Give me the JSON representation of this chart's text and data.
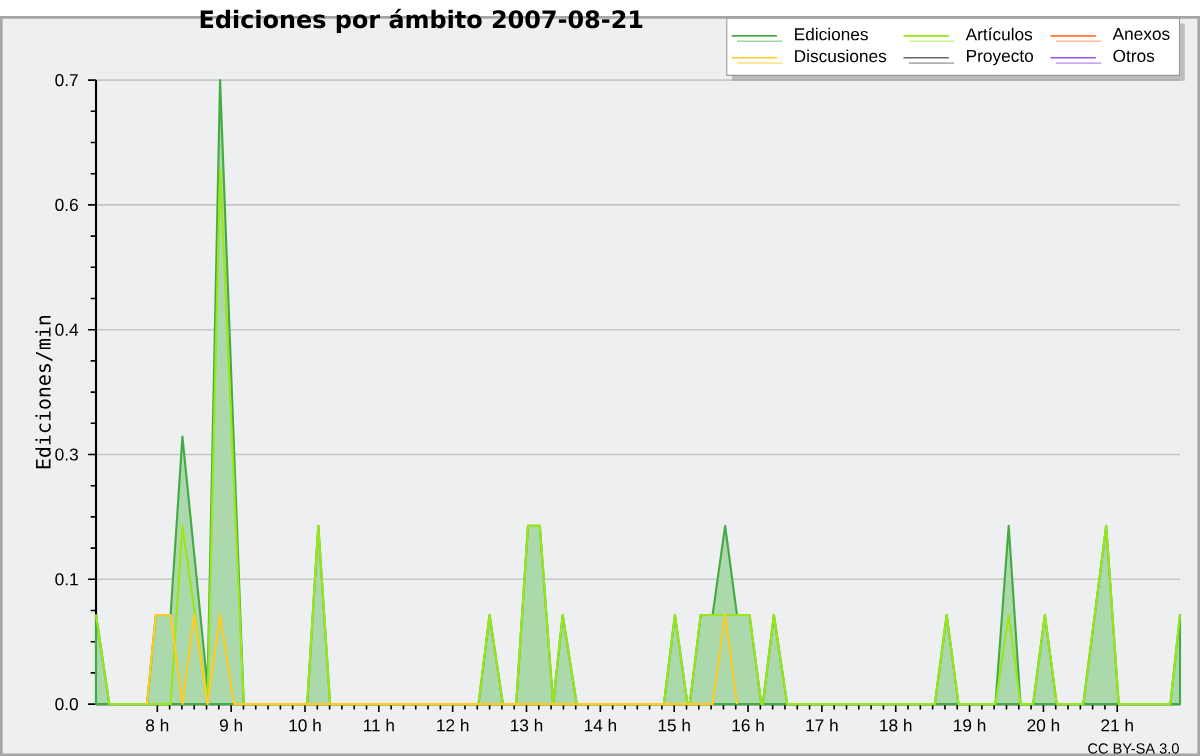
{
  "chart_data": {
    "type": "line",
    "title": "Ediciones por ámbito  2007-08-21",
    "ylabel": "Ediciones/min",
    "xlim": [
      7.17,
      21.85
    ],
    "ylim": [
      0,
      0.7
    ],
    "xticks": [
      {
        "value": 8,
        "label": "8 h"
      },
      {
        "value": 9,
        "label": "9 h"
      },
      {
        "value": 10,
        "label": "10 h"
      },
      {
        "value": 11,
        "label": "11 h"
      },
      {
        "value": 12,
        "label": "12 h"
      },
      {
        "value": 13,
        "label": "13 h"
      },
      {
        "value": 14,
        "label": "14 h"
      },
      {
        "value": 15,
        "label": "15 h"
      },
      {
        "value": 16,
        "label": "16 h"
      },
      {
        "value": 17,
        "label": "17 h"
      },
      {
        "value": 18,
        "label": "18 h"
      },
      {
        "value": 19,
        "label": "19 h"
      },
      {
        "value": 20,
        "label": "20 h"
      },
      {
        "value": 21,
        "label": "21 h"
      }
    ],
    "yticks": [
      {
        "value": 0,
        "label": "0.0"
      },
      {
        "value": 0.14,
        "label": "0.1"
      },
      {
        "value": 0.28,
        "label": "0.3"
      },
      {
        "value": 0.42,
        "label": "0.4"
      },
      {
        "value": 0.56,
        "label": "0.6"
      },
      {
        "value": 0.7,
        "label": "0.7"
      }
    ],
    "grid": "y",
    "legend": "top right",
    "annotations": [
      "CC BY-SA 3.0"
    ],
    "series": [
      {
        "name": "Ediciones",
        "type": "area",
        "color": "#44aa44",
        "x": [
          7.17,
          7.35,
          7.86,
          7.98,
          8.18,
          8.34,
          8.68,
          8.85,
          9.17,
          10.03,
          10.18,
          10.34,
          12.35,
          12.5,
          12.68,
          12.86,
          13.02,
          13.18,
          13.36,
          13.49,
          13.68,
          14.86,
          15.01,
          15.18,
          15.21,
          15.36,
          15.52,
          15.69,
          15.85,
          16.02,
          16.18,
          16.2,
          16.35,
          16.53,
          18.53,
          18.69,
          18.85,
          19.35,
          19.53,
          19.69,
          19.86,
          20.02,
          20.18,
          20.54,
          20.85,
          21.02,
          21.72,
          21.85
        ],
        "values": [
          0.1,
          0,
          0,
          0.1,
          0.1,
          0.3,
          0.02,
          0.7,
          0,
          0,
          0.2,
          0,
          0,
          0.1,
          0,
          0,
          0.2,
          0.2,
          0,
          0.1,
          0,
          0,
          0.1,
          0,
          0,
          0.1,
          0.1,
          0.2,
          0.1,
          0.1,
          0,
          0,
          0.1,
          0,
          0,
          0.1,
          0,
          0,
          0.2,
          0,
          0,
          0.1,
          0,
          0,
          0.2,
          0,
          0,
          0.1
        ]
      },
      {
        "name": "Artículos",
        "color": "#99e619",
        "x": [
          7.17,
          7.35,
          8.18,
          8.34,
          8.68,
          8.85,
          9.17,
          10.03,
          10.18,
          10.34,
          12.35,
          12.5,
          12.68,
          12.86,
          13.02,
          13.18,
          13.36,
          13.49,
          13.68,
          14.86,
          15.01,
          15.18,
          15.21,
          15.36,
          16.02,
          16.18,
          16.2,
          16.35,
          16.53,
          18.53,
          18.69,
          18.85,
          19.35,
          19.53,
          19.69,
          19.86,
          20.02,
          20.18,
          20.54,
          20.85,
          21.02,
          21.72,
          21.85
        ],
        "values": [
          0.1,
          0,
          0,
          0.2,
          0,
          0.6,
          0,
          0,
          0.2,
          0,
          0,
          0.1,
          0,
          0,
          0.2,
          0.2,
          0,
          0.1,
          0,
          0,
          0.1,
          0,
          0,
          0.1,
          0.1,
          0,
          0,
          0.1,
          0,
          0,
          0.1,
          0,
          0,
          0.1,
          0,
          0,
          0.1,
          0,
          0,
          0.2,
          0,
          0,
          0.1
        ]
      },
      {
        "name": "Anexos",
        "color": "#ff7733"
      },
      {
        "name": "Discusiones",
        "color": "#ffcc22",
        "x": [
          7.86,
          7.98,
          8.18,
          8.34,
          8.5,
          8.68,
          8.85,
          9.04,
          15.52,
          15.69,
          15.85
        ],
        "values": [
          0,
          0.1,
          0.1,
          0,
          0.1,
          0,
          0.1,
          0,
          0,
          0.1,
          0
        ]
      },
      {
        "name": "Proyecto",
        "color": "#666666"
      },
      {
        "name": "Otros",
        "color": "#9955ee"
      }
    ]
  }
}
